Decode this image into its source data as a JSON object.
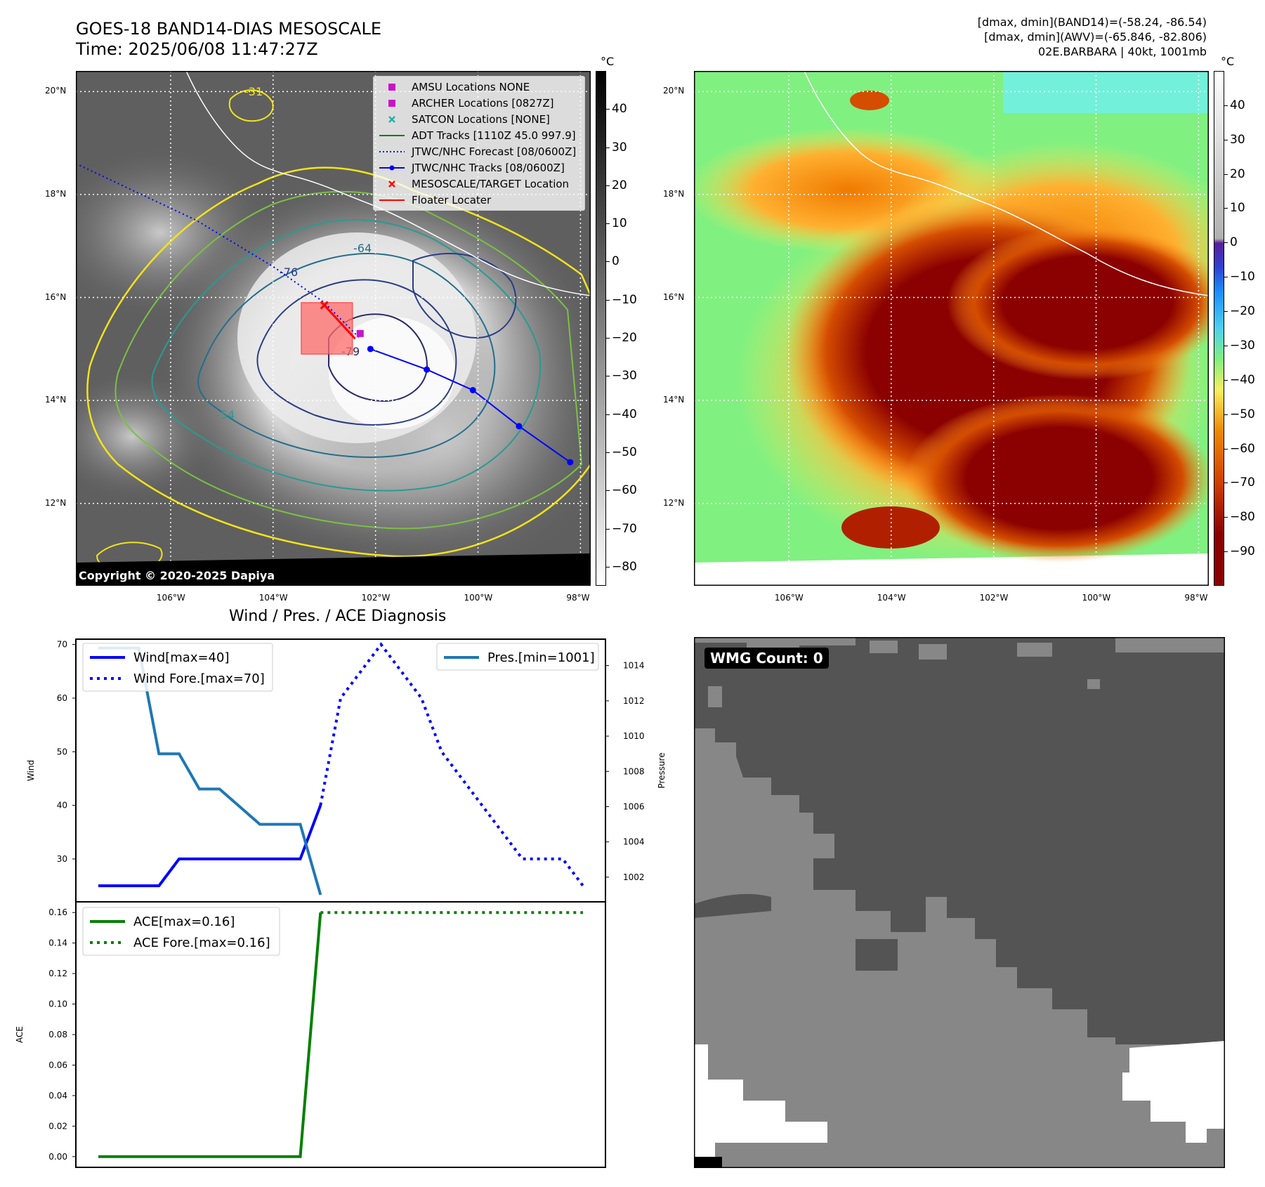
{
  "header": {
    "title_line1": "GOES-18 BAND14-DIAS MESOSCALE",
    "title_line2": "Time: 2025/06/08 11:47:27Z",
    "info_line1": "[dmax, dmin](BAND14)=(-58.24, -86.54)",
    "info_line2": "[dmax, dmin](AWV)=(-65.846, -82.806)",
    "info_line3": "02E.BARBARA | 40kt, 1001mb"
  },
  "map": {
    "lat_labels": [
      "20°N",
      "18°N",
      "16°N",
      "14°N",
      "12°N"
    ],
    "lat_values": [
      20,
      18,
      16,
      14,
      12
    ],
    "lon_labels": [
      "106°W",
      "104°W",
      "102°W",
      "100°W",
      "98°W"
    ],
    "lon_values": [
      -106,
      -104,
      -102,
      -100,
      -98
    ],
    "lon_range": [
      -107.85,
      -97.8
    ],
    "lat_range": [
      10.4,
      20.4
    ],
    "copyright": "Copyright © 2020-2025 Dapiya",
    "contour_labels": [
      "-31",
      "-64",
      "-76",
      "-79",
      "-54"
    ],
    "legend": [
      {
        "label": "AMSU Locations NONE",
        "symbol": "square",
        "color": "#cc11cc"
      },
      {
        "label": "ARCHER Locations [0827Z]",
        "symbol": "square",
        "color": "#cc11cc"
      },
      {
        "label": "SATCON Locations [NONE]",
        "symbol": "x",
        "color": "#20b2aa"
      },
      {
        "label": "ADT Tracks [1110Z 45.0 997.9]",
        "symbol": "line",
        "color": "#1a7a1a"
      },
      {
        "label": "JTWC/NHC Forecast [08/0600Z]",
        "symbol": "dotted",
        "color": "#0000ff"
      },
      {
        "label": "JTWC/NHC Tracks [08/0600Z]",
        "symbol": "line-dot",
        "color": "#0000ff"
      },
      {
        "label": "MESOSCALE/TARGET Location",
        "symbol": "x",
        "color": "#ff0000"
      },
      {
        "label": "Floater Locater",
        "symbol": "line",
        "color": "#ff0000"
      }
    ],
    "track_points": [
      [
        -102.1,
        15.0
      ],
      [
        -101.0,
        14.6
      ],
      [
        -100.1,
        14.2
      ],
      [
        -99.2,
        13.5
      ],
      [
        -98.2,
        12.8
      ]
    ],
    "forecast_line": [
      [
        -107.85,
        18.6
      ],
      [
        -105.5,
        17.5
      ],
      [
        -104.0,
        16.6
      ],
      [
        -103.0,
        15.9
      ],
      [
        -102.3,
        15.2
      ]
    ],
    "floater_line": [
      [
        -103.0,
        15.85
      ],
      [
        -102.4,
        15.2
      ]
    ],
    "target_location": [
      -103.0,
      15.85
    ],
    "archer_location": [
      -102.3,
      15.3
    ],
    "floater_box": {
      "lon1": -103.45,
      "lon2": -102.45,
      "lat1": 14.9,
      "lat2": 15.9
    }
  },
  "colorbar_gray": {
    "unit": "°C",
    "ticks": [
      "40",
      "30",
      "20",
      "10",
      "0",
      "−10",
      "−20",
      "−30",
      "−40",
      "−50",
      "−60",
      "−70",
      "−80"
    ],
    "tick_values": [
      40,
      30,
      20,
      10,
      0,
      -10,
      -20,
      -30,
      -40,
      -50,
      -60,
      -70,
      -80
    ],
    "range": [
      -85,
      50
    ]
  },
  "colorbar_color": {
    "unit": "°C",
    "ticks": [
      "40",
      "30",
      "20",
      "10",
      "0",
      "−10",
      "−20",
      "−30",
      "−40",
      "−50",
      "−60",
      "−70",
      "−80",
      "−90"
    ],
    "tick_values": [
      40,
      30,
      20,
      10,
      0,
      -10,
      -20,
      -30,
      -40,
      -50,
      -60,
      -70,
      -80,
      -90
    ],
    "range": [
      -100,
      50
    ]
  },
  "chart_data": [
    {
      "type": "line",
      "title": "Wind / Pres. / ACE Diagnosis",
      "ylabel": "Wind",
      "y2label": "Pressure",
      "ylim": [
        22,
        71
      ],
      "y2lim": [
        1000.6,
        1015.5
      ],
      "x": [
        0,
        1,
        2,
        3,
        4,
        5,
        6,
        7,
        8,
        9,
        10,
        11,
        12,
        13,
        14,
        15,
        16,
        17,
        18,
        19,
        20,
        21,
        22,
        23,
        24
      ],
      "series": [
        {
          "name": "Wind[max=40]",
          "axis": "left",
          "style": "solid",
          "color": "#0000ff",
          "x": [
            0,
            1,
            2,
            3,
            4,
            5,
            6,
            7,
            8,
            9,
            10,
            11
          ],
          "values": [
            25,
            25,
            25,
            25,
            30,
            30,
            30,
            30,
            30,
            30,
            30,
            40
          ]
        },
        {
          "name": "Wind Fore.[max=70]",
          "axis": "left",
          "style": "dotted",
          "color": "#0000ff",
          "x": [
            11,
            12,
            13,
            14,
            15,
            16,
            17,
            18,
            19,
            20,
            21,
            22,
            23,
            24
          ],
          "values": [
            40,
            60,
            65,
            70,
            65,
            60,
            50,
            45,
            40,
            35,
            30,
            30,
            30,
            25
          ]
        },
        {
          "name": "Pres.[min=1001]",
          "axis": "right",
          "style": "solid",
          "color": "#1f77b4",
          "x": [
            0,
            1,
            2,
            3,
            4,
            5,
            6,
            7,
            8,
            9,
            10,
            11
          ],
          "values": [
            1015,
            1015,
            1015,
            1009,
            1009,
            1007,
            1007,
            1006,
            1005,
            1005,
            1005,
            1001
          ]
        }
      ],
      "yticks": [
        30,
        40,
        50,
        60,
        70
      ],
      "y2ticks": [
        1002,
        1004,
        1006,
        1008,
        1010,
        1012,
        1014
      ],
      "legend_left": "upper-left",
      "legend_right": "upper-right"
    },
    {
      "type": "line",
      "ylabel": "ACE",
      "ylim": [
        -0.007,
        0.167
      ],
      "series": [
        {
          "name": "ACE[max=0.16]",
          "style": "solid",
          "color": "#008000",
          "x": [
            0,
            10,
            11
          ],
          "values": [
            0.0,
            0.0,
            0.16
          ]
        },
        {
          "name": "ACE Fore.[max=0.16]",
          "style": "dotted",
          "color": "#008000",
          "x": [
            11,
            24
          ],
          "values": [
            0.16,
            0.16
          ]
        }
      ],
      "yticks": [
        0.0,
        0.02,
        0.04,
        0.06,
        0.08,
        0.1,
        0.12,
        0.14,
        0.16
      ],
      "ytick_labels": [
        "0.00",
        "0.02",
        "0.04",
        "0.06",
        "0.08",
        "0.10",
        "0.12",
        "0.14",
        "0.16"
      ],
      "legend": "upper-left"
    }
  ],
  "wmg": {
    "label": "WMG Count: 0",
    "colors": {
      "dark": "#545454",
      "mid": "#878787",
      "light": "#ffffff"
    }
  }
}
